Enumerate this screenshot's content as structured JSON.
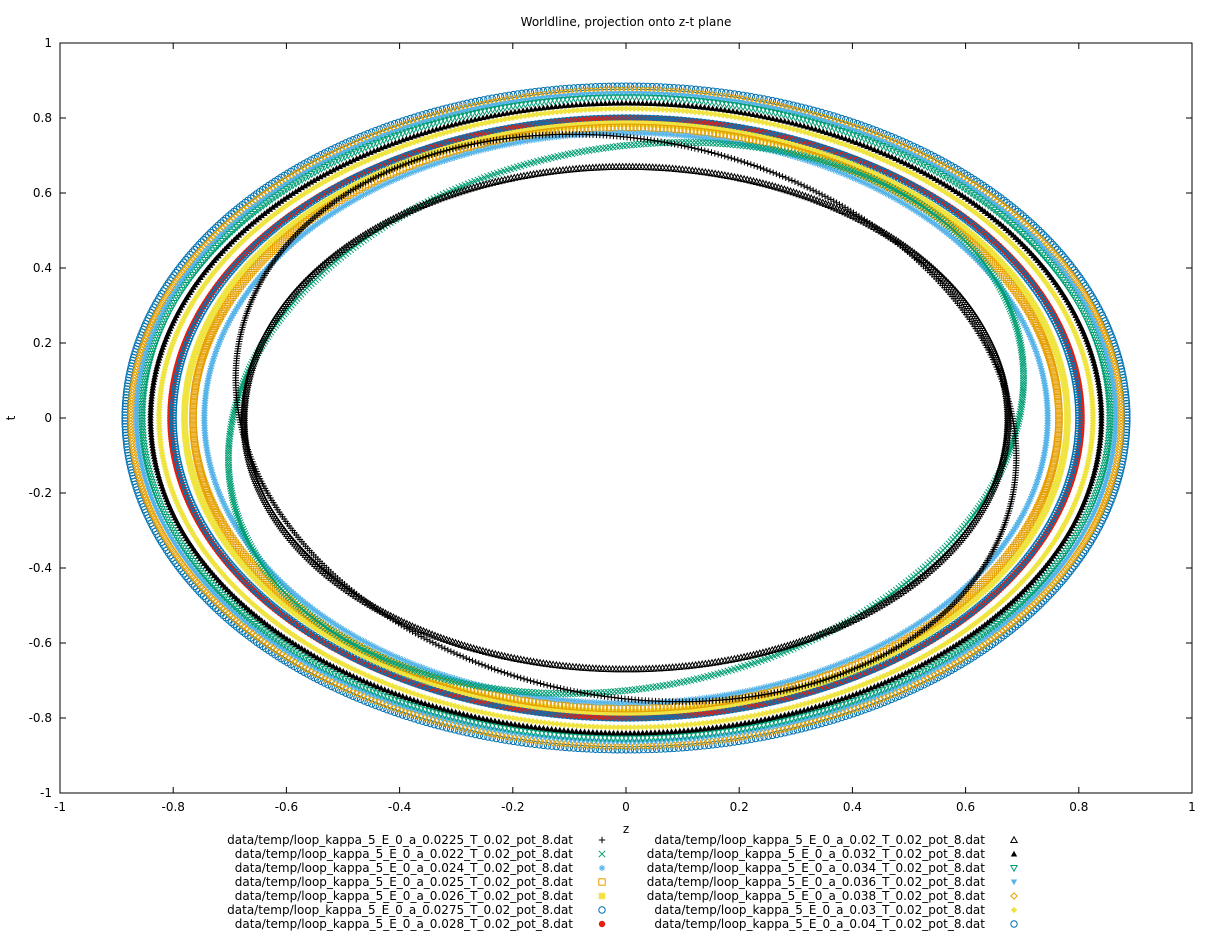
{
  "chart_data": {
    "type": "scatter",
    "title": "Worldline, projection onto z-t plane",
    "xlabel": "z",
    "ylabel": "t",
    "xlim": [
      -1,
      1
    ],
    "ylim": [
      -1,
      1
    ],
    "xticks": [
      -1,
      -0.8,
      -0.6,
      -0.4,
      -0.2,
      0,
      0.2,
      0.4,
      0.6,
      0.8,
      1
    ],
    "yticks": [
      -1,
      -0.8,
      -0.6,
      -0.4,
      -0.2,
      0,
      0.2,
      0.4,
      0.6,
      0.8,
      1
    ],
    "xtick_labels": [
      "-1",
      "-0.8",
      "-0.6",
      "-0.4",
      "-0.2",
      "0",
      "0.2",
      "0.4",
      "0.6",
      "0.8",
      "1"
    ],
    "ytick_labels": [
      "-1",
      "-0.8",
      "-0.6",
      "-0.4",
      "-0.2",
      "0",
      "0.2",
      "0.4",
      "0.6",
      "0.8",
      "1"
    ],
    "grid": false,
    "legend_placement": "bottom, two columns",
    "series": [
      {
        "name": "data/temp/loop_kappa_5_E_0_a_0.0225_T_0.02_pot_8.dat",
        "marker": "plus",
        "color": "#000000",
        "shape": "figure8",
        "rz": 0.72,
        "rt": 0.73
      },
      {
        "name": "data/temp/loop_kappa_5_E_0_a_0.022_T_0.02_pot_8.dat",
        "marker": "cross",
        "color": "#009e73",
        "shape": "figure8",
        "rz": 0.73,
        "rt": 0.71
      },
      {
        "name": "data/temp/loop_kappa_5_E_0_a_0.024_T_0.02_pot_8.dat",
        "marker": "asterisk",
        "color": "#56b4e9",
        "rz": 0.745,
        "rt": 0.76
      },
      {
        "name": "data/temp/loop_kappa_5_E_0_a_0.025_T_0.02_pot_8.dat",
        "marker": "open-square",
        "color": "#e69f00",
        "rz": 0.765,
        "rt": 0.775
      },
      {
        "name": "data/temp/loop_kappa_5_E_0_a_0.026_T_0.02_pot_8.dat",
        "marker": "filled-square",
        "color": "#f0e442",
        "rz": 0.78,
        "rt": 0.785
      },
      {
        "name": "data/temp/loop_kappa_5_E_0_a_0.0275_T_0.02_pot_8.dat",
        "marker": "open-circle",
        "color": "#0072b2",
        "rz": 0.8,
        "rt": 0.8
      },
      {
        "name": "data/temp/loop_kappa_5_E_0_a_0.028_T_0.02_pot_8.dat",
        "marker": "filled-circle",
        "color": "#e51e10",
        "rz": 0.805,
        "rt": 0.8
      },
      {
        "name": "data/temp/loop_kappa_5_E_0_a_0.02_T_0.02_pot_8.dat",
        "marker": "open-triangle",
        "color": "#000000",
        "rz": 0.675,
        "rt": 0.67
      },
      {
        "name": "data/temp/loop_kappa_5_E_0_a_0.032_T_0.02_pot_8.dat",
        "marker": "filled-triangle",
        "color": "#000000",
        "rz": 0.84,
        "rt": 0.84
      },
      {
        "name": "data/temp/loop_kappa_5_E_0_a_0.034_T_0.02_pot_8.dat",
        "marker": "open-inverted-triangle",
        "color": "#009e73",
        "rz": 0.855,
        "rt": 0.855
      },
      {
        "name": "data/temp/loop_kappa_5_E_0_a_0.036_T_0.02_pot_8.dat",
        "marker": "filled-inverted-triangle",
        "color": "#56b4e9",
        "rz": 0.865,
        "rt": 0.865
      },
      {
        "name": "data/temp/loop_kappa_5_E_0_a_0.038_T_0.02_pot_8.dat",
        "marker": "open-diamond",
        "color": "#e69f00",
        "rz": 0.875,
        "rt": 0.875
      },
      {
        "name": "data/temp/loop_kappa_5_E_0_a_0.03_T_0.02_pot_8.dat",
        "marker": "filled-diamond",
        "color": "#f0e442",
        "rz": 0.825,
        "rt": 0.825
      },
      {
        "name": "data/temp/loop_kappa_5_E_0_a_0.04_T_0.02_pot_8.dat",
        "marker": "open-circle",
        "color": "#0072b2",
        "rz": 0.885,
        "rt": 0.885
      }
    ]
  }
}
